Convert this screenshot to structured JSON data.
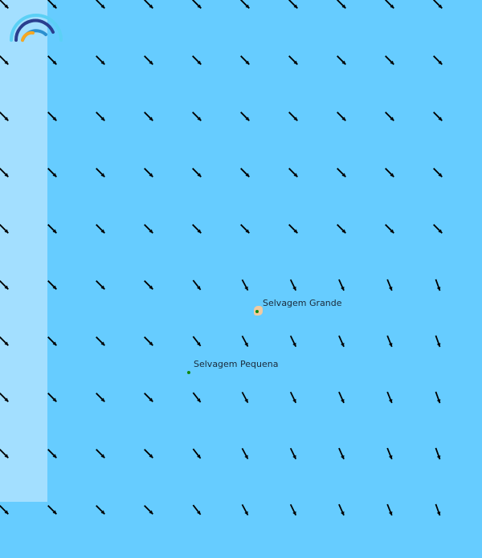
{
  "map": {
    "sea_color": "#66ccff",
    "strip_color": "#a3dfff",
    "land_color": "#f2caa0",
    "arrow_color": "#000000",
    "logo": "rainbow-arc-logo",
    "places": [
      {
        "name": "Selvagem Grande"
      },
      {
        "name": "Selvagem Pequena"
      }
    ]
  }
}
